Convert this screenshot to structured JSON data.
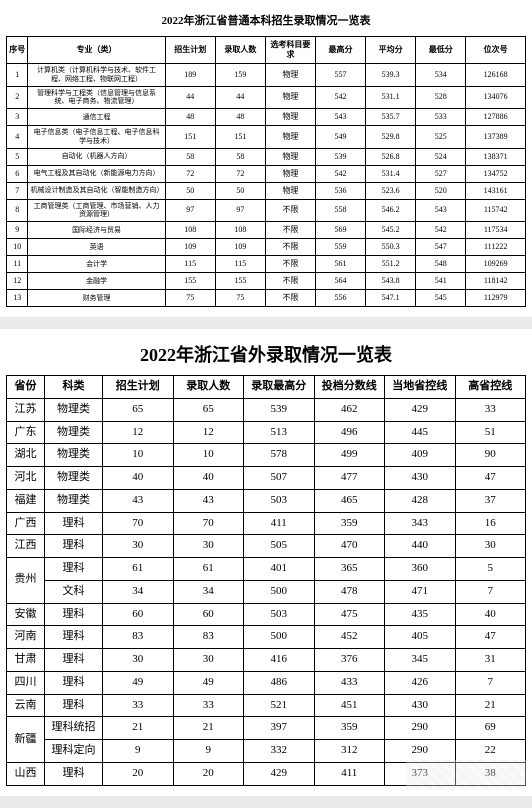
{
  "table1": {
    "title": "2022年浙江省普通本科招生录取情况一览表",
    "headers": [
      "序号",
      "专业（类）",
      "招生计划",
      "录取人数",
      "选考科目要求",
      "最高分",
      "平均分",
      "最低分",
      "位次号"
    ],
    "rows": [
      {
        "idx": "1",
        "major": "计算机类（计算机科学与技术、软件工程、网络工程、物联网工程）",
        "plan": "189",
        "enroll": "159",
        "req": "物理",
        "max": "557",
        "avg": "539.3",
        "min": "534",
        "rank": "126168"
      },
      {
        "idx": "2",
        "major": "管理科学与工程类（信息管理与信息系统、电子商务、物流管理）",
        "plan": "44",
        "enroll": "44",
        "req": "物理",
        "max": "542",
        "avg": "531.1",
        "min": "528",
        "rank": "134076"
      },
      {
        "idx": "3",
        "major": "通信工程",
        "plan": "48",
        "enroll": "48",
        "req": "物理",
        "max": "543",
        "avg": "535.7",
        "min": "533",
        "rank": "127886"
      },
      {
        "idx": "4",
        "major": "电子信息类（电子信息工程、电子信息科学与技术）",
        "plan": "151",
        "enroll": "151",
        "req": "物理",
        "max": "549",
        "avg": "529.8",
        "min": "525",
        "rank": "137389"
      },
      {
        "idx": "5",
        "major": "自动化（机器人方向）",
        "plan": "58",
        "enroll": "58",
        "req": "物理",
        "max": "539",
        "avg": "526.8",
        "min": "524",
        "rank": "138371"
      },
      {
        "idx": "6",
        "major": "电气工程及其自动化（新能源电力方向）",
        "plan": "72",
        "enroll": "72",
        "req": "物理",
        "max": "542",
        "avg": "531.4",
        "min": "527",
        "rank": "134752"
      },
      {
        "idx": "7",
        "major": "机械设计制造及其自动化（智能制造方向）",
        "plan": "50",
        "enroll": "50",
        "req": "物理",
        "max": "536",
        "avg": "523.6",
        "min": "520",
        "rank": "143161"
      },
      {
        "idx": "8",
        "major": "工商管理类（工商管理、市场营销、人力资源管理）",
        "plan": "97",
        "enroll": "97",
        "req": "不限",
        "max": "558",
        "avg": "546.2",
        "min": "543",
        "rank": "115742"
      },
      {
        "idx": "9",
        "major": "国际经济与贸易",
        "plan": "108",
        "enroll": "108",
        "req": "不限",
        "max": "569",
        "avg": "545.2",
        "min": "542",
        "rank": "117534"
      },
      {
        "idx": "10",
        "major": "英语",
        "plan": "109",
        "enroll": "109",
        "req": "不限",
        "max": "559",
        "avg": "550.3",
        "min": "547",
        "rank": "111222"
      },
      {
        "idx": "11",
        "major": "会计学",
        "plan": "115",
        "enroll": "115",
        "req": "不限",
        "max": "561",
        "avg": "551.2",
        "min": "548",
        "rank": "109269"
      },
      {
        "idx": "12",
        "major": "金融学",
        "plan": "155",
        "enroll": "155",
        "req": "不限",
        "max": "564",
        "avg": "543.8",
        "min": "541",
        "rank": "118142"
      },
      {
        "idx": "13",
        "major": "财务管理",
        "plan": "75",
        "enroll": "75",
        "req": "不限",
        "max": "556",
        "avg": "547.1",
        "min": "545",
        "rank": "112979"
      }
    ]
  },
  "table2": {
    "title": "2022年浙江省外录取情况一览表",
    "headers": [
      "省份",
      "科类",
      "招生计划",
      "录取人数",
      "录取最高分",
      "投档分数线",
      "当地省控线",
      "高省控线"
    ],
    "rows": [
      {
        "prov": "江苏",
        "subj": "物理类",
        "plan": "65",
        "enroll": "65",
        "max": "539",
        "line": "462",
        "ctrl": "429",
        "diff": "33"
      },
      {
        "prov": "广东",
        "subj": "物理类",
        "plan": "12",
        "enroll": "12",
        "max": "513",
        "line": "496",
        "ctrl": "445",
        "diff": "51"
      },
      {
        "prov": "湖北",
        "subj": "物理类",
        "plan": "10",
        "enroll": "10",
        "max": "578",
        "line": "499",
        "ctrl": "409",
        "diff": "90"
      },
      {
        "prov": "河北",
        "subj": "物理类",
        "plan": "40",
        "enroll": "40",
        "max": "507",
        "line": "477",
        "ctrl": "430",
        "diff": "47"
      },
      {
        "prov": "福建",
        "subj": "物理类",
        "plan": "43",
        "enroll": "43",
        "max": "503",
        "line": "465",
        "ctrl": "428",
        "diff": "37"
      },
      {
        "prov": "广西",
        "subj": "理科",
        "plan": "70",
        "enroll": "70",
        "max": "411",
        "line": "359",
        "ctrl": "343",
        "diff": "16"
      },
      {
        "prov": "江西",
        "subj": "理科",
        "plan": "30",
        "enroll": "30",
        "max": "505",
        "line": "470",
        "ctrl": "440",
        "diff": "30"
      },
      {
        "prov": "贵州",
        "prov_rowspan": 2,
        "subj": "理科",
        "plan": "61",
        "enroll": "61",
        "max": "401",
        "line": "365",
        "ctrl": "360",
        "diff": "5"
      },
      {
        "prov": null,
        "subj": "文科",
        "plan": "34",
        "enroll": "34",
        "max": "500",
        "line": "478",
        "ctrl": "471",
        "diff": "7"
      },
      {
        "prov": "安徽",
        "subj": "理科",
        "plan": "60",
        "enroll": "60",
        "max": "503",
        "line": "475",
        "ctrl": "435",
        "diff": "40"
      },
      {
        "prov": "河南",
        "subj": "理科",
        "plan": "83",
        "enroll": "83",
        "max": "500",
        "line": "452",
        "ctrl": "405",
        "diff": "47"
      },
      {
        "prov": "甘肃",
        "subj": "理科",
        "plan": "30",
        "enroll": "30",
        "max": "416",
        "line": "376",
        "ctrl": "345",
        "diff": "31"
      },
      {
        "prov": "四川",
        "subj": "理科",
        "plan": "49",
        "enroll": "49",
        "max": "486",
        "line": "433",
        "ctrl": "426",
        "diff": "7"
      },
      {
        "prov": "云南",
        "subj": "理科",
        "plan": "33",
        "enroll": "33",
        "max": "521",
        "line": "451",
        "ctrl": "430",
        "diff": "21"
      },
      {
        "prov": "新疆",
        "prov_rowspan": 2,
        "subj": "理科统招",
        "plan": "21",
        "enroll": "21",
        "max": "397",
        "line": "359",
        "ctrl": "290",
        "diff": "69"
      },
      {
        "prov": null,
        "subj": "理科定向",
        "plan": "9",
        "enroll": "9",
        "max": "332",
        "line": "312",
        "ctrl": "290",
        "diff": "22"
      },
      {
        "prov": "山西",
        "subj": "理科",
        "plan": "20",
        "enroll": "20",
        "max": "429",
        "line": "411",
        "ctrl": "373",
        "diff": "38"
      }
    ]
  }
}
